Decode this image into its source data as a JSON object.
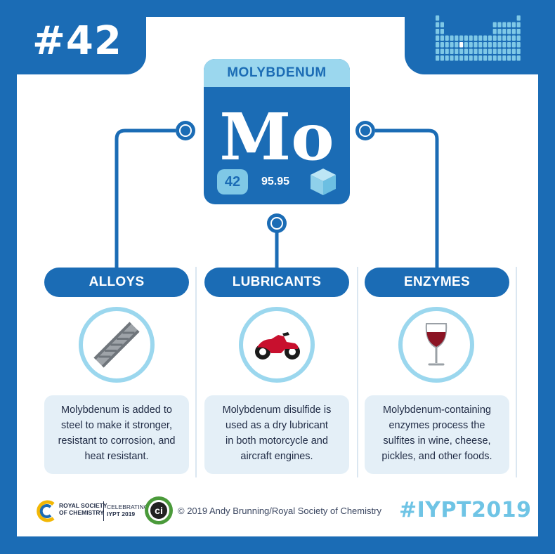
{
  "number_badge": "#42",
  "element": {
    "name": "MOLYBDENUM",
    "symbol": "Mo",
    "atomic_number": "42",
    "atomic_mass": "95.95"
  },
  "uses": [
    {
      "title": "ALLOYS",
      "icon": "steel-beam-icon",
      "description": [
        "Molybdenum is added to",
        "steel to make it stronger,",
        "resistant to corrosion, and",
        "heat resistant."
      ]
    },
    {
      "title": "LUBRICANTS",
      "icon": "motorcycle-icon",
      "description": [
        "Molybdenum disulfide is",
        "used as a dry lubricant",
        "in both motorcycle and",
        "aircraft engines."
      ]
    },
    {
      "title": "ENZYMES",
      "icon": "wine-glass-icon",
      "description": [
        "Molybdenum-containing",
        "enzymes process the",
        "sulfites in wine, cheese,",
        "pickles, and other foods."
      ]
    }
  ],
  "footer": {
    "rsc_lines": [
      "ROYAL SOCIETY",
      "OF CHEMISTRY"
    ],
    "iypt_lines": [
      "CELEBRATING",
      "IYPT 2019"
    ],
    "ci_label": "ci",
    "copyright": "© 2019 Andy Brunning/Royal Society of Chemistry",
    "hashtag": "#IYPT2019"
  },
  "colors": {
    "primary_blue": "#1b6cb5",
    "light_blue": "#9bd7ee",
    "box_background": "#e4eff7",
    "accent_red": "#c8102e"
  }
}
